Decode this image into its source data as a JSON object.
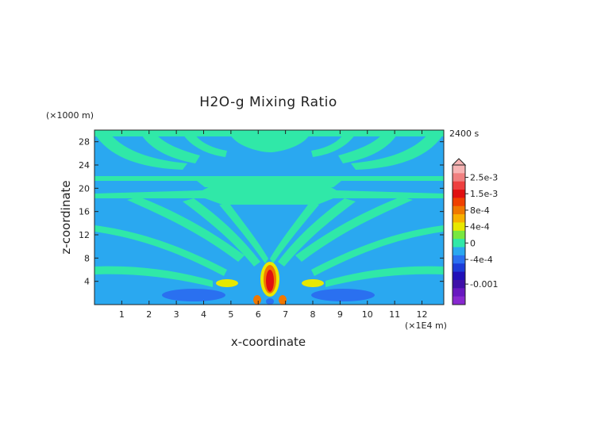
{
  "chart_data": {
    "type": "heatmap",
    "title": "H2O-g Mixing Ratio",
    "xlabel": "x-coordinate",
    "ylabel": "z-coordinate",
    "x_unit": "(×1E4 m)",
    "y_unit": "(×1000 m)",
    "time_label": "2400 s",
    "xlim": [
      0,
      12.8
    ],
    "ylim": [
      0,
      30
    ],
    "x_ticks": [
      "1",
      "2",
      "3",
      "4",
      "5",
      "6",
      "7",
      "8",
      "9",
      "10",
      "11",
      "12"
    ],
    "y_ticks": [
      "4",
      "8",
      "12",
      "16",
      "20",
      "24",
      "28"
    ],
    "colorbar": {
      "labels": [
        "2.5e-3",
        "1.5e-3",
        "8e-4",
        "4e-4",
        "0",
        "-4e-4",
        "-0.001"
      ],
      "bands": [
        {
          "value": 0.003,
          "color": "#f7b4b4"
        },
        {
          "value": 0.0025,
          "color": "#f08080"
        },
        {
          "value": 0.002,
          "color": "#ee4040"
        },
        {
          "value": 0.0015,
          "color": "#e01010"
        },
        {
          "value": 0.001,
          "color": "#f04000"
        },
        {
          "value": 0.0008,
          "color": "#f07800"
        },
        {
          "value": 0.0006,
          "color": "#f8b000"
        },
        {
          "value": 0.0004,
          "color": "#e8e800"
        },
        {
          "value": 0.0002,
          "color": "#78e840"
        },
        {
          "value": 0,
          "color": "#30e8a8"
        },
        {
          "value": -0.0002,
          "color": "#2aa8f0"
        },
        {
          "value": -0.0004,
          "color": "#2a70f0"
        },
        {
          "value": -0.0006,
          "color": "#1c3cd8"
        },
        {
          "value": -0.0008,
          "color": "#2010b8"
        },
        {
          "value": -0.001,
          "color": "#4010a8"
        },
        {
          "value": -0.0012,
          "color": "#6818c0"
        },
        {
          "value": -0.0014,
          "color": "#8828d0"
        }
      ]
    },
    "colors": {
      "background_field": "#2aa8f0",
      "zero_band": "#30e8a8",
      "strong_negative": "#2a70f0",
      "positive_low": "#e8e800",
      "positive_mid": "#f07800",
      "positive_high": "#e01010",
      "peak": "#f7b4b4"
    }
  }
}
